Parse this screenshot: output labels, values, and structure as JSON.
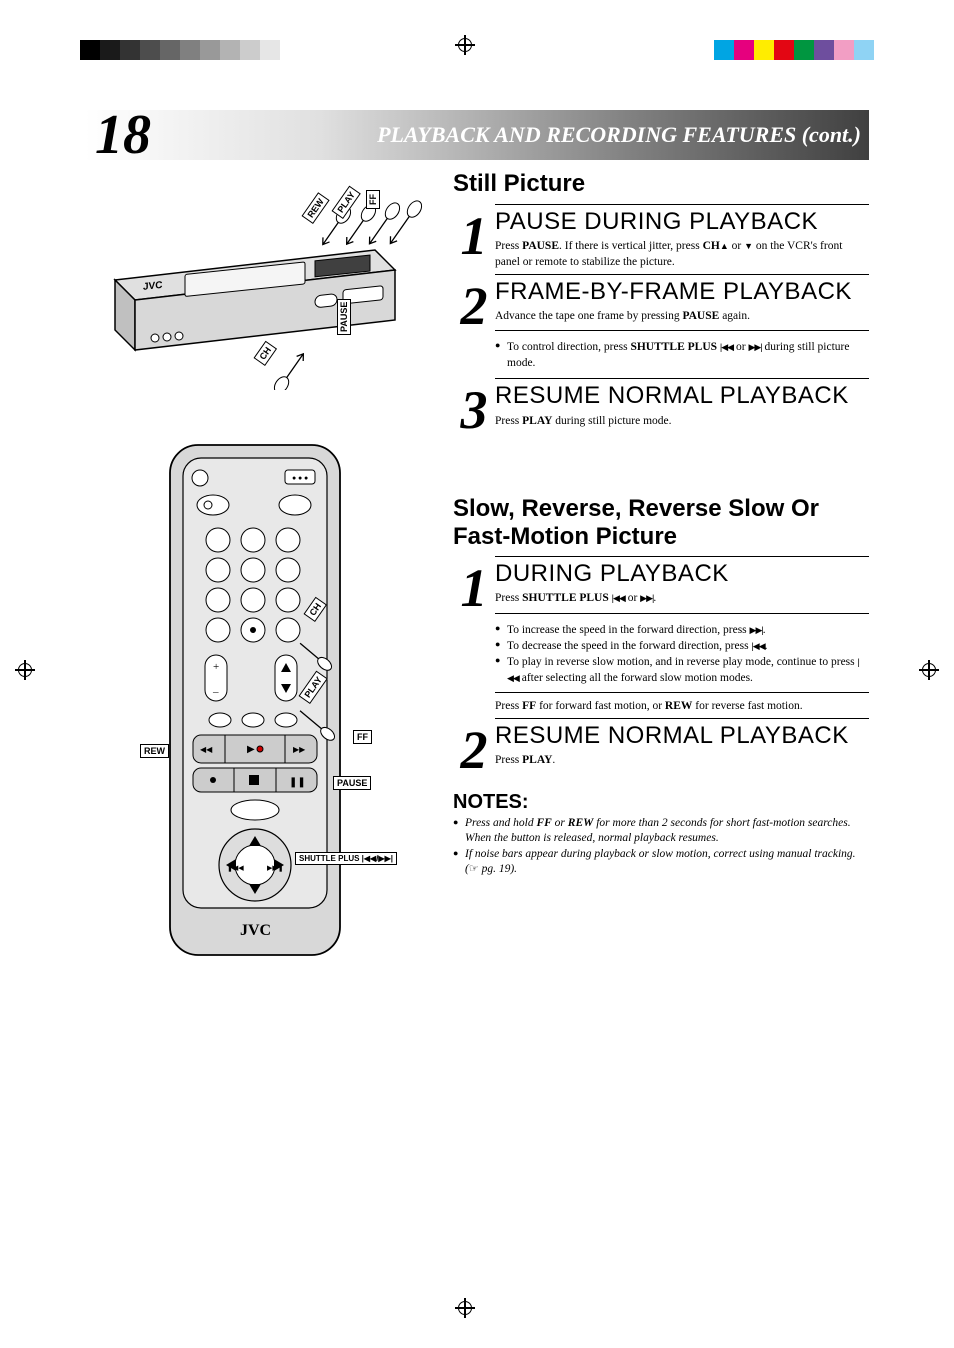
{
  "page": {
    "number": "18",
    "title": "PLAYBACK AND RECORDING FEATURES (cont.)"
  },
  "registration": {
    "left_grays": [
      "#000000",
      "#1a1a1a",
      "#333333",
      "#4d4d4d",
      "#666666",
      "#808080",
      "#999999",
      "#b3b3b3",
      "#cccccc",
      "#e6e6e6"
    ],
    "right_colors": [
      "#00a5e3",
      "#e6007e",
      "#ffed00",
      "#e30613",
      "#009640",
      "#6e4e9e",
      "#f29ec4",
      "#8fd3f4"
    ]
  },
  "still_picture": {
    "title": "Still Picture",
    "steps": [
      {
        "num": "1",
        "heading": "PAUSE DURING PLAYBACK",
        "body_html": "Press <b>PAUSE</b>. If there is vertical jitter, press <b>CH</b><span class='triangle-up'></span> or <span class='triangle-down'></span> on the VCR's front panel or remote to stabilize the picture."
      },
      {
        "num": "2",
        "heading": "FRAME-BY-FRAME PLAYBACK",
        "body_html": "Advance the tape one frame by pressing <b>PAUSE</b> again.",
        "sub_bullets": [
          "To control direction, press <b>SHUTTLE PLUS</b> <span class='skip-back'></span> or <span class='skip-fwd'></span> during still picture mode."
        ]
      },
      {
        "num": "3",
        "heading": "RESUME NORMAL PLAYBACK",
        "body_html": "Press <b>PLAY</b> during still picture mode."
      }
    ]
  },
  "slow_motion": {
    "title": "Slow, Reverse, Reverse Slow Or Fast-Motion Picture",
    "steps": [
      {
        "num": "1",
        "heading": "DURING PLAYBACK",
        "body_html": "Press <b>SHUTTLE PLUS</b> <span class='skip-back'></span> or <span class='skip-fwd'></span>.",
        "sub_bullets": [
          "To increase the speed in the forward direction, press <span class='skip-fwd'></span>.",
          "To decrease the speed in the forward direction, press <span class='skip-back'></span>.",
          "To play in reverse slow motion, and in reverse play mode, continue to press <span class='skip-back'></span> after selecting all the forward slow motion modes."
        ],
        "post_text": "Press <b>FF</b> for forward fast motion, or <b>REW</b> for reverse fast motion."
      },
      {
        "num": "2",
        "heading": "RESUME NORMAL PLAYBACK",
        "body_html": "Press <b>PLAY</b>."
      }
    ]
  },
  "notes": {
    "title": "NOTES:",
    "items": [
      "Press and hold <b>FF</b> or <b>REW</b> for more than 2 seconds for short fast-motion searches. When the button is released, normal playback resumes.",
      "If noise bars appear during playback or slow motion, correct using manual tracking. (<span class='pointer-icon'></span> pg. 19)."
    ]
  },
  "figures": {
    "vcr": {
      "brand": "JVC",
      "callouts": [
        "REW",
        "PLAY",
        "FF",
        "CH",
        "PAUSE"
      ]
    },
    "remote": {
      "brand": "JVC",
      "callouts": [
        "CH",
        "PLAY",
        "FF",
        "REW",
        "PAUSE",
        "SHUTTLE PLUS |◀◀/▶▶|"
      ]
    }
  }
}
